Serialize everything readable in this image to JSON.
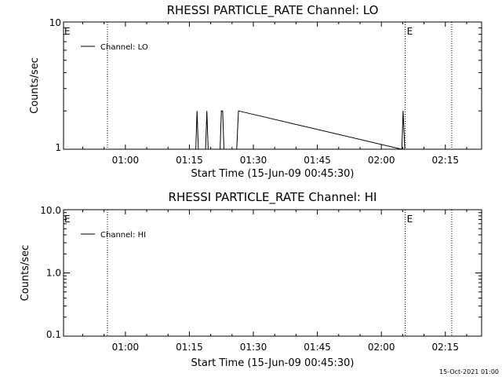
{
  "footer": {
    "timestamp": "15-Oct-2021 01:00"
  },
  "chart_data": [
    {
      "type": "line",
      "title": "RHESSI PARTICLE_RATE Channel: LO",
      "xlabel": "Start Time (15-Jun-09 00:45:30)",
      "ylabel": "Counts/sec",
      "x_unit": "minutes after 00:45:30",
      "xlim": [
        0,
        98
      ],
      "ylim": [
        1,
        10
      ],
      "yscale": "log",
      "x_ticks": [
        {
          "x": 14.5,
          "label": "01:00"
        },
        {
          "x": 29.5,
          "label": "01:15"
        },
        {
          "x": 44.5,
          "label": "01:30"
        },
        {
          "x": 59.5,
          "label": "01:45"
        },
        {
          "x": 74.5,
          "label": "02:00"
        },
        {
          "x": 89.5,
          "label": "02:15"
        }
      ],
      "y_ticks": [
        {
          "y": 1,
          "label": "1"
        },
        {
          "y": 10,
          "label": "10"
        }
      ],
      "y_minor_ticks": [
        2,
        3,
        4,
        5,
        6,
        7,
        8,
        9
      ],
      "vertical_lines": [
        {
          "x": 10.3,
          "style": "dotted"
        },
        {
          "x": 80.1,
          "style": "dotted"
        },
        {
          "x": 91.0,
          "style": "dotted"
        }
      ],
      "flags": [
        {
          "x": 0.0,
          "label": "E"
        },
        {
          "x": 80.1,
          "label": "E"
        }
      ],
      "legend": {
        "position": "top-left",
        "entries": [
          "Channel: LO"
        ]
      },
      "series": [
        {
          "name": "Channel: LO",
          "color": "#000000",
          "points": [
            [
              31.0,
              1
            ],
            [
              31.3,
              2
            ],
            [
              31.6,
              1
            ],
            [
              33.3,
              1
            ],
            [
              33.6,
              2
            ],
            [
              33.9,
              1
            ],
            [
              36.7,
              1
            ],
            [
              37.0,
              2
            ],
            [
              37.3,
              2
            ],
            [
              37.6,
              1
            ],
            [
              40.6,
              1
            ],
            [
              41.0,
              2
            ],
            [
              79.3,
              1
            ],
            [
              79.6,
              2
            ],
            [
              80.0,
              1
            ]
          ]
        }
      ]
    },
    {
      "type": "line",
      "title": "RHESSI PARTICLE_RATE Channel: HI",
      "xlabel": "Start Time (15-Jun-09 00:45:30)",
      "ylabel": "Counts/sec",
      "x_unit": "minutes after 00:45:30",
      "xlim": [
        0,
        98
      ],
      "ylim": [
        0.1,
        10
      ],
      "yscale": "log",
      "x_ticks": [
        {
          "x": 14.5,
          "label": "01:00"
        },
        {
          "x": 29.5,
          "label": "01:15"
        },
        {
          "x": 44.5,
          "label": "01:30"
        },
        {
          "x": 59.5,
          "label": "01:45"
        },
        {
          "x": 74.5,
          "label": "02:00"
        },
        {
          "x": 89.5,
          "label": "02:15"
        }
      ],
      "y_ticks": [
        {
          "y": 0.1,
          "label": "0.1"
        },
        {
          "y": 1,
          "label": "1.0"
        },
        {
          "y": 10,
          "label": "10.0"
        }
      ],
      "y_minor_ticks": [
        0.2,
        0.3,
        0.4,
        0.5,
        0.6,
        0.7,
        0.8,
        0.9,
        2,
        3,
        4,
        5,
        6,
        7,
        8,
        9
      ],
      "vertical_lines": [
        {
          "x": 10.3,
          "style": "dotted"
        },
        {
          "x": 80.1,
          "style": "dotted"
        },
        {
          "x": 91.0,
          "style": "dotted"
        }
      ],
      "flags": [
        {
          "x": 0.0,
          "label": "E"
        },
        {
          "x": 80.1,
          "label": "E"
        }
      ],
      "legend": {
        "position": "top-left",
        "entries": [
          "Channel: HI"
        ]
      },
      "series": [
        {
          "name": "Channel: HI",
          "color": "#000000",
          "points": []
        }
      ]
    }
  ]
}
